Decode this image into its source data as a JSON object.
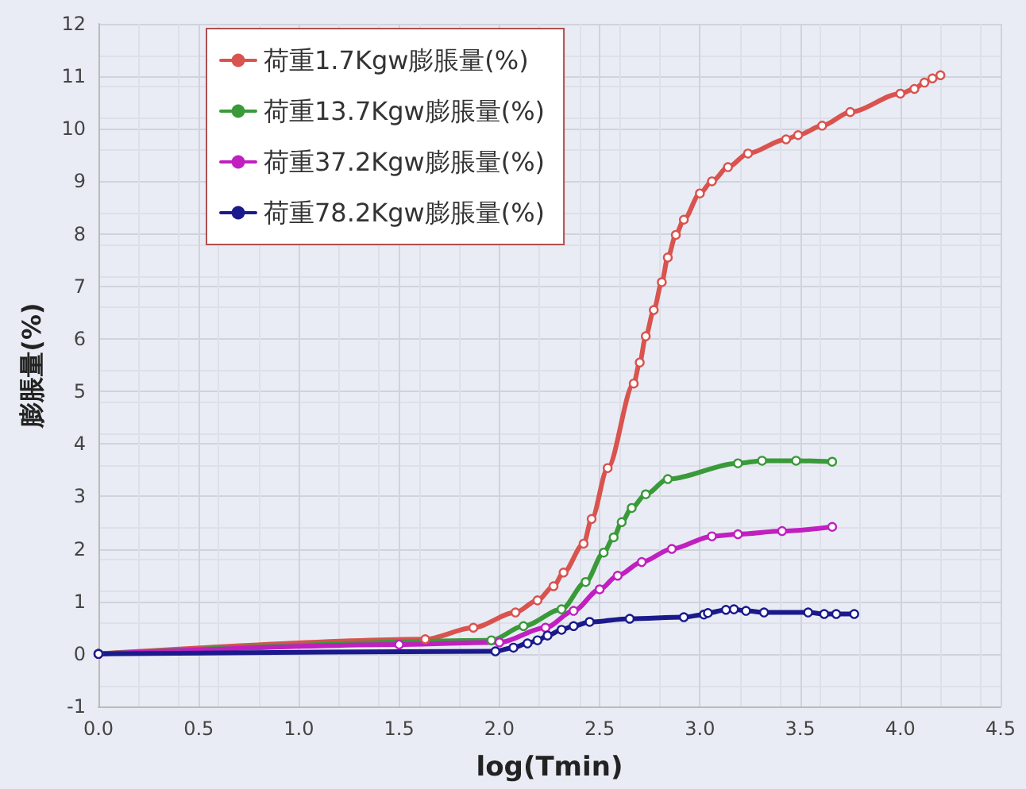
{
  "chart_data": {
    "type": "line",
    "xlabel": "log(Tmin)",
    "ylabel": "膨脹量(%)",
    "xlim": [
      0,
      4.5
    ],
    "xticks": [
      {
        "value": 0,
        "label": "0.0"
      },
      {
        "value": 0.5,
        "label": "0.5"
      },
      {
        "value": 1,
        "label": "1.0"
      },
      {
        "value": 1.5,
        "label": "1.5"
      },
      {
        "value": 2,
        "label": "2.0"
      },
      {
        "value": 2.5,
        "label": "2.5"
      },
      {
        "value": 3,
        "label": "3.0"
      },
      {
        "value": 3.5,
        "label": "3.5"
      },
      {
        "value": 4,
        "label": "4.0"
      },
      {
        "value": 4.5,
        "label": "4.5"
      }
    ],
    "ylim": [
      -1,
      12
    ],
    "yticks": [
      -1,
      0,
      1,
      2,
      3,
      4,
      5,
      6,
      7,
      8,
      9,
      10,
      11,
      12
    ],
    "grid": true,
    "legend": "top left",
    "marker": "circle",
    "line_style": "solid",
    "series": [
      {
        "name": "荷重1.7Kgw膨脹量(%)",
        "color": "#d9534f",
        "x": [
          0,
          1.63,
          1.87,
          2.08,
          2.19,
          2.27,
          2.32,
          2.42,
          2.46,
          2.54,
          2.67,
          2.7,
          2.73,
          2.77,
          2.81,
          2.84,
          2.88,
          2.92,
          3.0,
          3.06,
          3.14,
          3.24,
          3.43,
          3.49,
          3.61,
          3.75,
          4.0,
          4.07,
          4.12,
          4.16,
          4.2
        ],
        "values": [
          0,
          0.28,
          0.5,
          0.79,
          1.02,
          1.29,
          1.55,
          2.1,
          2.57,
          3.54,
          5.15,
          5.55,
          6.05,
          6.55,
          7.08,
          7.55,
          7.98,
          8.27,
          8.77,
          9.0,
          9.27,
          9.53,
          9.8,
          9.88,
          10.06,
          10.32,
          10.67,
          10.76,
          10.88,
          10.96,
          11.02
        ]
      },
      {
        "name": "荷重13.7Kgw膨脹量(%)",
        "color": "#3a9a3a",
        "x": [
          0,
          1.96,
          2.12,
          2.31,
          2.43,
          2.52,
          2.57,
          2.61,
          2.66,
          2.73,
          2.84,
          3.19,
          3.31,
          3.48,
          3.66
        ],
        "values": [
          0,
          0.26,
          0.53,
          0.85,
          1.37,
          1.93,
          2.22,
          2.51,
          2.78,
          3.04,
          3.33,
          3.63,
          3.68,
          3.68,
          3.66
        ]
      },
      {
        "name": "荷重37.2Kgw膨脹量(%)",
        "color": "#c020c0",
        "x": [
          0,
          1.5,
          2.0,
          2.23,
          2.37,
          2.5,
          2.59,
          2.71,
          2.86,
          3.06,
          3.19,
          3.41,
          3.66
        ],
        "values": [
          0,
          0.18,
          0.22,
          0.5,
          0.82,
          1.23,
          1.49,
          1.75,
          2.0,
          2.24,
          2.28,
          2.34,
          2.42
        ]
      },
      {
        "name": "荷重78.2Kgw膨脹量(%)",
        "color": "#1a1a8c",
        "x": [
          0,
          1.98,
          2.07,
          2.14,
          2.19,
          2.24,
          2.31,
          2.37,
          2.45,
          2.65,
          2.92,
          3.02,
          3.04,
          3.13,
          3.17,
          3.23,
          3.32,
          3.54,
          3.62,
          3.68,
          3.77
        ],
        "values": [
          0,
          0.05,
          0.12,
          0.2,
          0.26,
          0.35,
          0.46,
          0.53,
          0.61,
          0.67,
          0.7,
          0.75,
          0.78,
          0.84,
          0.85,
          0.82,
          0.79,
          0.79,
          0.76,
          0.76,
          0.76
        ]
      }
    ]
  }
}
